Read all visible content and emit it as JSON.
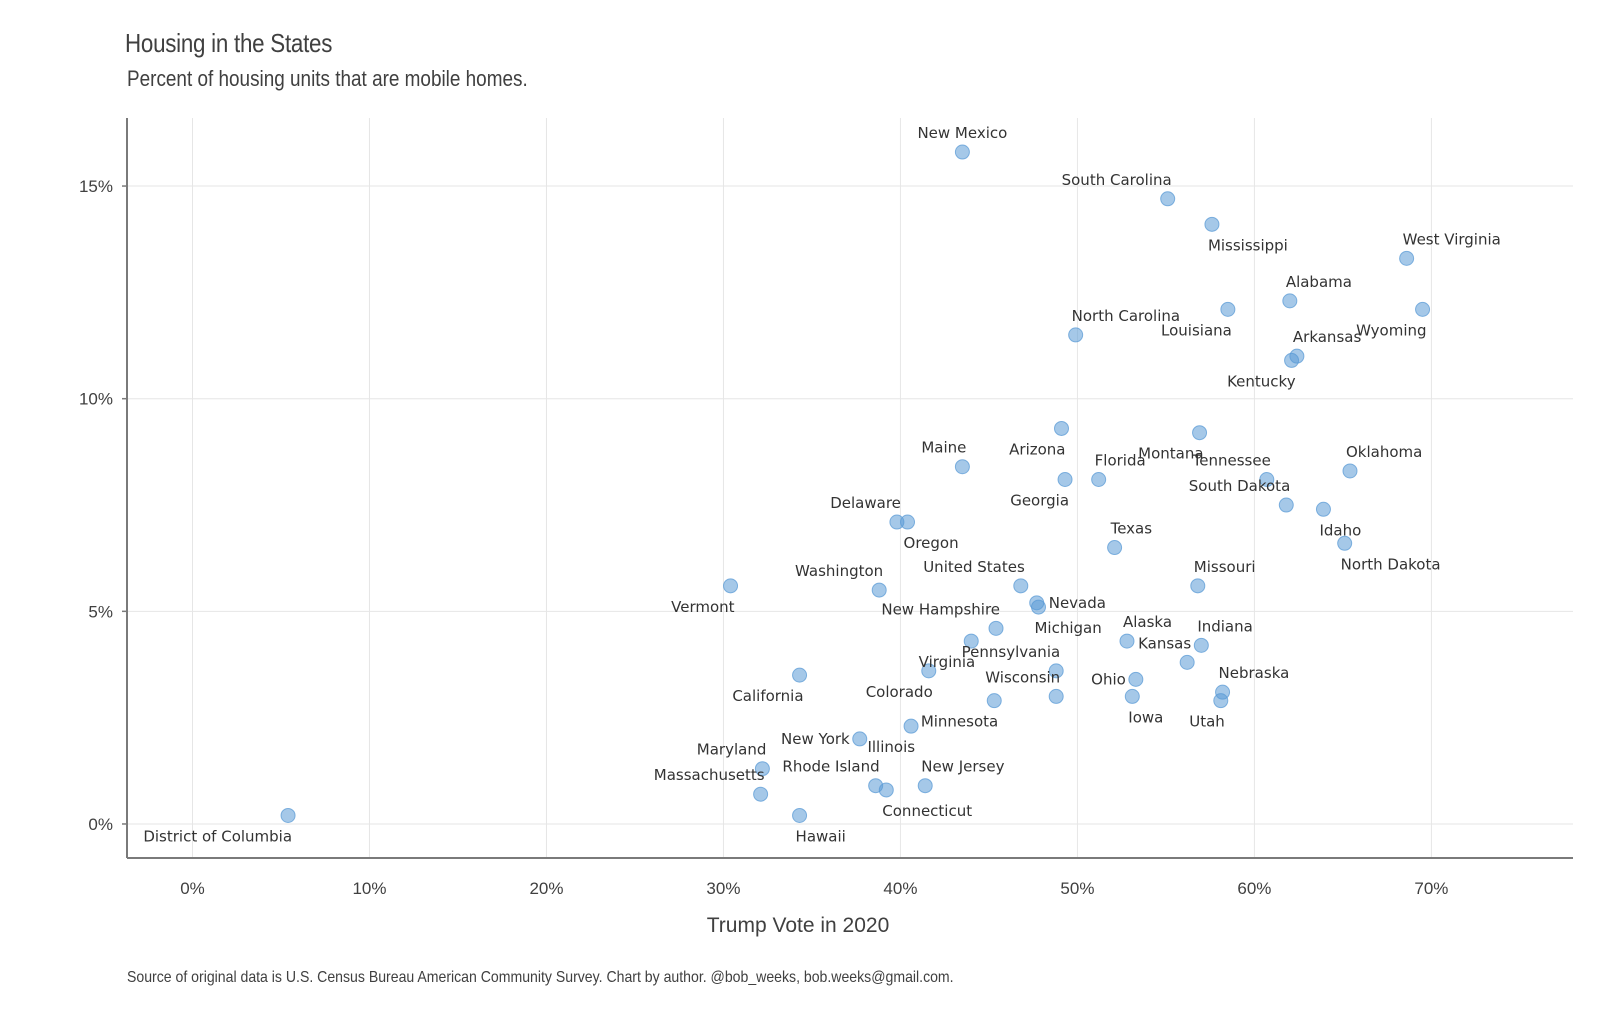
{
  "title": "Housing in the States",
  "subtitle": "Percent of housing units that are mobile homes.",
  "caption": "Source of original data is U.S. Census Bureau American Community Survey. Chart by author. @bob_weeks, bob.weeks@gmail.com.",
  "point_color": "#5b9bd5",
  "chart_data": {
    "type": "scatter",
    "xlabel": "Trump Vote in 2020",
    "ylabel": "",
    "xlim": [
      -3.7,
      78
    ],
    "ylim": [
      -0.8,
      16.6
    ],
    "x_ticks": [
      0,
      10,
      20,
      30,
      40,
      50,
      60,
      70
    ],
    "x_tick_labels": [
      "0%",
      "10%",
      "20%",
      "30%",
      "40%",
      "50%",
      "60%",
      "70%"
    ],
    "y_ticks": [
      0,
      5,
      10,
      15
    ],
    "y_tick_labels": [
      "0%",
      "5%",
      "10%",
      "15%"
    ],
    "grid": true,
    "points": [
      {
        "label": "New Mexico",
        "x": 43.5,
        "y": 15.8,
        "pos": "above"
      },
      {
        "label": "South Carolina",
        "x": 55.1,
        "y": 14.7,
        "pos": "above-left"
      },
      {
        "label": "Mississippi",
        "x": 57.6,
        "y": 14.1,
        "pos": "below-right"
      },
      {
        "label": "West Virginia",
        "x": 68.6,
        "y": 13.3,
        "pos": "above-right"
      },
      {
        "label": "Alabama",
        "x": 62.0,
        "y": 12.3,
        "pos": "above-right"
      },
      {
        "label": "Louisiana",
        "x": 58.5,
        "y": 12.1,
        "pos": "below-left"
      },
      {
        "label": "Wyoming",
        "x": 69.5,
        "y": 12.1,
        "pos": "below-left"
      },
      {
        "label": "North Carolina",
        "x": 49.9,
        "y": 11.5,
        "pos": "above-right"
      },
      {
        "label": "Arkansas",
        "x": 62.4,
        "y": 11.0,
        "pos": "above-right"
      },
      {
        "label": "Kentucky",
        "x": 62.1,
        "y": 10.9,
        "pos": "below-left"
      },
      {
        "label": "Arizona",
        "x": 49.1,
        "y": 9.3,
        "pos": "below-left"
      },
      {
        "label": "Montana",
        "x": 56.9,
        "y": 9.2,
        "pos": "below-left"
      },
      {
        "label": "Maine",
        "x": 43.5,
        "y": 8.4,
        "pos": "above-left"
      },
      {
        "label": "Oklahoma",
        "x": 65.4,
        "y": 8.3,
        "pos": "above-right"
      },
      {
        "label": "Georgia",
        "x": 49.3,
        "y": 8.1,
        "pos": "below-left"
      },
      {
        "label": "Florida",
        "x": 51.2,
        "y": 8.1,
        "pos": "above-right"
      },
      {
        "label": "Tennessee",
        "x": 60.7,
        "y": 8.1,
        "pos": "above-left"
      },
      {
        "label": "South Dakota",
        "x": 61.8,
        "y": 7.5,
        "pos": "above-left"
      },
      {
        "label": "Idaho",
        "x": 63.9,
        "y": 7.4,
        "pos": "below-right"
      },
      {
        "label": "Delaware",
        "x": 39.8,
        "y": 7.1,
        "pos": "above-left"
      },
      {
        "label": "Oregon",
        "x": 40.4,
        "y": 7.1,
        "pos": "below-right"
      },
      {
        "label": "North Dakota",
        "x": 65.1,
        "y": 6.6,
        "pos": "below-right"
      },
      {
        "label": "Texas",
        "x": 52.1,
        "y": 6.5,
        "pos": "above-right"
      },
      {
        "label": "Vermont",
        "x": 30.4,
        "y": 5.6,
        "pos": "below-left"
      },
      {
        "label": "United States",
        "x": 46.8,
        "y": 5.6,
        "pos": "above-left"
      },
      {
        "label": "Missouri",
        "x": 56.8,
        "y": 5.6,
        "pos": "above-right"
      },
      {
        "label": "Washington",
        "x": 38.8,
        "y": 5.5,
        "pos": "above-left"
      },
      {
        "label": "Nevada",
        "x": 47.7,
        "y": 5.2,
        "pos": "right"
      },
      {
        "label": "Michigan",
        "x": 47.8,
        "y": 5.1,
        "pos": "below-right"
      },
      {
        "label": "New Hampshire",
        "x": 45.4,
        "y": 4.6,
        "pos": "above-left"
      },
      {
        "label": "Alaska",
        "x": 52.8,
        "y": 4.3,
        "pos": "above-right"
      },
      {
        "label": "Virginia",
        "x": 44.0,
        "y": 4.3,
        "pos": "below-left"
      },
      {
        "label": "Indiana",
        "x": 57.0,
        "y": 4.2,
        "pos": "above-right"
      },
      {
        "label": "Kansas",
        "x": 56.2,
        "y": 3.8,
        "pos": "above-left"
      },
      {
        "label": "Pennsylvania",
        "x": 48.8,
        "y": 3.6,
        "pos": "above-left"
      },
      {
        "label": "Colorado",
        "x": 41.6,
        "y": 3.6,
        "pos": "below-left"
      },
      {
        "label": "California",
        "x": 34.3,
        "y": 3.5,
        "pos": "below-left"
      },
      {
        "label": "Ohio",
        "x": 53.3,
        "y": 3.4,
        "pos": "left"
      },
      {
        "label": "Nebraska",
        "x": 58.2,
        "y": 3.1,
        "pos": "above-right"
      },
      {
        "label": "Wisconsin",
        "x": 48.8,
        "y": 3.0,
        "pos": "above-left"
      },
      {
        "label": "Iowa",
        "x": 53.1,
        "y": 3.0,
        "pos": "below-right"
      },
      {
        "label": "Minnesota",
        "x": 45.3,
        "y": 2.9,
        "pos": "below-left"
      },
      {
        "label": "Utah",
        "x": 58.1,
        "y": 2.9,
        "pos": "below-left"
      },
      {
        "label": "Illinois",
        "x": 40.6,
        "y": 2.3,
        "pos": "below-left"
      },
      {
        "label": "New York",
        "x": 37.7,
        "y": 2.0,
        "pos": "left"
      },
      {
        "label": "Maryland",
        "x": 32.2,
        "y": 1.3,
        "pos": "above-left"
      },
      {
        "label": "Rhode Island",
        "x": 38.6,
        "y": 0.9,
        "pos": "above-left"
      },
      {
        "label": "New Jersey",
        "x": 41.4,
        "y": 0.9,
        "pos": "above-right"
      },
      {
        "label": "Connecticut",
        "x": 39.2,
        "y": 0.8,
        "pos": "below-right"
      },
      {
        "label": "Massachusetts",
        "x": 32.1,
        "y": 0.7,
        "pos": "above-left"
      },
      {
        "label": "Hawaii",
        "x": 34.3,
        "y": 0.2,
        "pos": "below-right"
      },
      {
        "label": "District of Columbia",
        "x": 5.4,
        "y": 0.2,
        "pos": "below-left"
      }
    ]
  }
}
